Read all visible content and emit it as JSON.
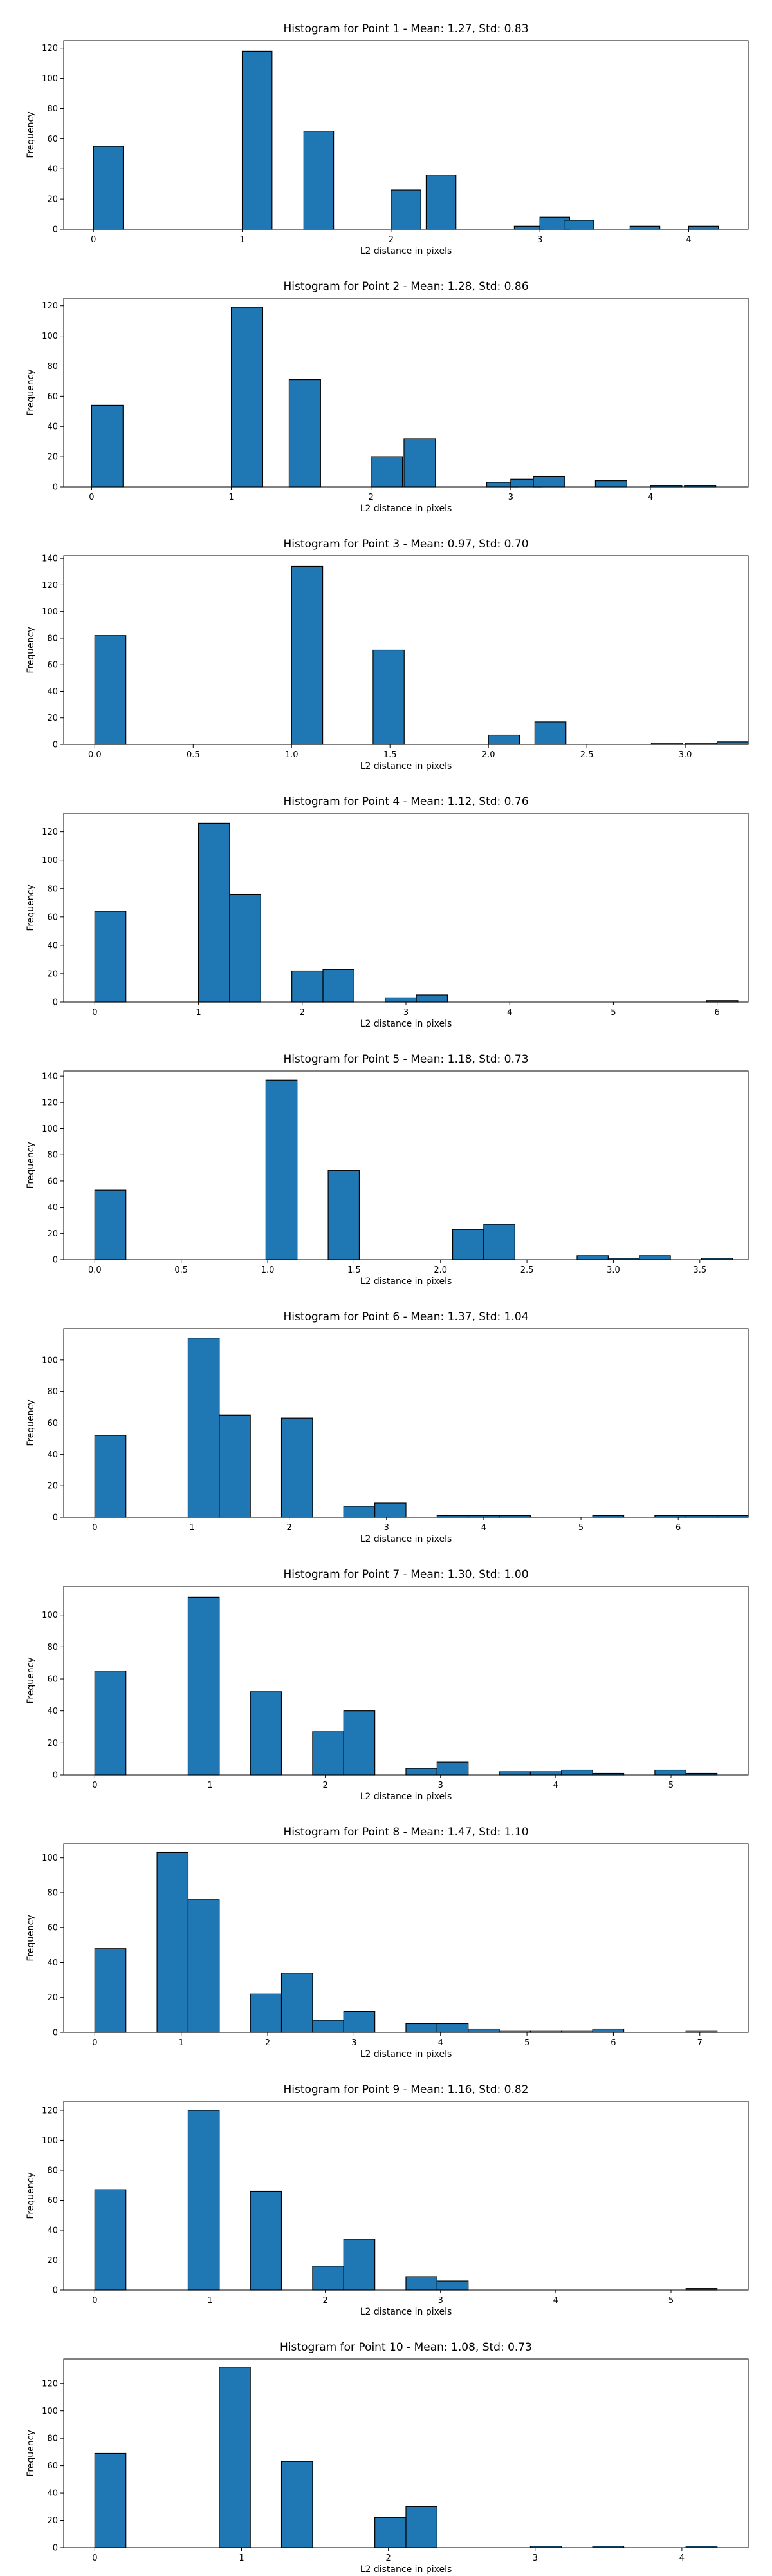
{
  "style": {
    "bar_color": "#1f77b4",
    "edge_color": "#000000"
  },
  "chart_data": [
    {
      "type": "bar",
      "title": "Histogram for Point 1 - Mean: 1.27, Std: 0.83",
      "xlabel": "L2 distance in pixels",
      "ylabel": "Frequency",
      "bin_width": 0.2,
      "xlim": [
        -0.2,
        4.4
      ],
      "ylim": [
        0,
        125
      ],
      "xticks": [
        0,
        1,
        2,
        3,
        4
      ],
      "xtick_labels": [
        "0",
        "1",
        "2",
        "3",
        "4"
      ],
      "yticks": [
        0,
        20,
        40,
        60,
        80,
        100,
        120
      ],
      "ytick_labels": [
        "0",
        "20",
        "40",
        "60",
        "80",
        "100",
        "120"
      ],
      "bars": [
        {
          "x": 0.0,
          "value": 55
        },
        {
          "x": 1.0,
          "value": 118
        },
        {
          "x": 1.414,
          "value": 65
        },
        {
          "x": 2.0,
          "value": 26
        },
        {
          "x": 2.236,
          "value": 36
        },
        {
          "x": 2.828,
          "value": 2
        },
        {
          "x": 3.0,
          "value": 8
        },
        {
          "x": 3.162,
          "value": 6
        },
        {
          "x": 3.606,
          "value": 2
        },
        {
          "x": 4.0,
          "value": 2
        }
      ]
    },
    {
      "type": "bar",
      "title": "Histogram for Point 2 - Mean: 1.28, Std: 0.86",
      "xlabel": "L2 distance in pixels",
      "ylabel": "Frequency",
      "bin_width": 0.225,
      "xlim": [
        -0.2,
        4.7
      ],
      "ylim": [
        0,
        125
      ],
      "xticks": [
        0,
        1,
        2,
        3,
        4
      ],
      "xtick_labels": [
        "0",
        "1",
        "2",
        "3",
        "4"
      ],
      "yticks": [
        0,
        20,
        40,
        60,
        80,
        100,
        120
      ],
      "ytick_labels": [
        "0",
        "20",
        "40",
        "60",
        "80",
        "100",
        "120"
      ],
      "bars": [
        {
          "x": 0.0,
          "value": 54
        },
        {
          "x": 1.0,
          "value": 119
        },
        {
          "x": 1.414,
          "value": 71
        },
        {
          "x": 2.0,
          "value": 20
        },
        {
          "x": 2.236,
          "value": 32
        },
        {
          "x": 2.828,
          "value": 3
        },
        {
          "x": 3.0,
          "value": 5
        },
        {
          "x": 3.162,
          "value": 7
        },
        {
          "x": 3.606,
          "value": 4
        },
        {
          "x": 4.0,
          "value": 1
        },
        {
          "x": 4.243,
          "value": 1
        }
      ]
    },
    {
      "type": "bar",
      "title": "Histogram for Point 3 - Mean: 0.97, Std: 0.70",
      "xlabel": "L2 distance in pixels",
      "ylabel": "Frequency",
      "bin_width": 0.158,
      "xlim": [
        -0.158,
        3.32
      ],
      "ylim": [
        0,
        142
      ],
      "xticks": [
        0,
        0.5,
        1,
        1.5,
        2,
        2.5,
        3
      ],
      "xtick_labels": [
        "0.0",
        "0.5",
        "1.0",
        "1.5",
        "2.0",
        "2.5",
        "3.0"
      ],
      "yticks": [
        0,
        20,
        40,
        60,
        80,
        100,
        120,
        140
      ],
      "ytick_labels": [
        "0",
        "20",
        "40",
        "60",
        "80",
        "100",
        "120",
        "140"
      ],
      "bars": [
        {
          "x": 0.0,
          "value": 82
        },
        {
          "x": 1.0,
          "value": 134
        },
        {
          "x": 1.414,
          "value": 71
        },
        {
          "x": 2.0,
          "value": 7
        },
        {
          "x": 2.236,
          "value": 17
        },
        {
          "x": 2.828,
          "value": 1
        },
        {
          "x": 3.0,
          "value": 1
        },
        {
          "x": 3.162,
          "value": 2
        }
      ]
    },
    {
      "type": "bar",
      "title": "Histogram for Point 4 - Mean: 1.12, Std: 0.76",
      "xlabel": "L2 distance in pixels",
      "ylabel": "Frequency",
      "bin_width": 0.3,
      "xlim": [
        -0.3,
        6.3
      ],
      "ylim": [
        0,
        133
      ],
      "xticks": [
        0,
        1,
        2,
        3,
        4,
        5,
        6
      ],
      "xtick_labels": [
        "0",
        "1",
        "2",
        "3",
        "4",
        "5",
        "6"
      ],
      "yticks": [
        0,
        20,
        40,
        60,
        80,
        100,
        120
      ],
      "ytick_labels": [
        "0",
        "20",
        "40",
        "60",
        "80",
        "100",
        "120"
      ],
      "bars": [
        {
          "x": 0.0,
          "value": 64
        },
        {
          "x": 1.0,
          "value": 126
        },
        {
          "x": 1.3,
          "value": 76
        },
        {
          "x": 1.9,
          "value": 22
        },
        {
          "x": 2.2,
          "value": 23
        },
        {
          "x": 2.8,
          "value": 3
        },
        {
          "x": 3.1,
          "value": 5
        },
        {
          "x": 5.9,
          "value": 1
        }
      ]
    },
    {
      "type": "bar",
      "title": "Histogram for Point 5 - Mean: 1.18, Std: 0.73",
      "xlabel": "L2 distance in pixels",
      "ylabel": "Frequency",
      "bin_width": 0.18,
      "xlim": [
        -0.18,
        3.78
      ],
      "ylim": [
        0,
        144
      ],
      "xticks": [
        0,
        0.5,
        1,
        1.5,
        2,
        2.5,
        3,
        3.5
      ],
      "xtick_labels": [
        "0.0",
        "0.5",
        "1.0",
        "1.5",
        "2.0",
        "2.5",
        "3.0",
        "3.5"
      ],
      "yticks": [
        0,
        20,
        40,
        60,
        80,
        100,
        120,
        140
      ],
      "ytick_labels": [
        "0",
        "20",
        "40",
        "60",
        "80",
        "100",
        "120",
        "140"
      ],
      "bars": [
        {
          "x": 0.0,
          "value": 53
        },
        {
          "x": 0.99,
          "value": 137
        },
        {
          "x": 1.35,
          "value": 68
        },
        {
          "x": 2.07,
          "value": 23
        },
        {
          "x": 2.25,
          "value": 27
        },
        {
          "x": 2.79,
          "value": 3
        },
        {
          "x": 2.97,
          "value": 1
        },
        {
          "x": 3.15,
          "value": 3
        },
        {
          "x": 3.51,
          "value": 1
        }
      ]
    },
    {
      "type": "bar",
      "title": "Histogram for Point 6 - Mean: 1.37, Std: 1.04",
      "xlabel": "L2 distance in pixels",
      "ylabel": "Frequency",
      "bin_width": 0.32,
      "xlim": [
        -0.32,
        6.72
      ],
      "ylim": [
        0,
        120
      ],
      "xticks": [
        0,
        1,
        2,
        3,
        4,
        5,
        6
      ],
      "xtick_labels": [
        "0",
        "1",
        "2",
        "3",
        "4",
        "5",
        "6"
      ],
      "yticks": [
        0,
        20,
        40,
        60,
        80,
        100
      ],
      "ytick_labels": [
        "0",
        "20",
        "40",
        "60",
        "80",
        "100"
      ],
      "bars": [
        {
          "x": 0.0,
          "value": 52
        },
        {
          "x": 0.96,
          "value": 114
        },
        {
          "x": 1.28,
          "value": 65
        },
        {
          "x": 1.92,
          "value": 63
        },
        {
          "x": 2.56,
          "value": 7
        },
        {
          "x": 2.88,
          "value": 9
        },
        {
          "x": 3.52,
          "value": 1
        },
        {
          "x": 3.84,
          "value": 1
        },
        {
          "x": 4.16,
          "value": 1
        },
        {
          "x": 5.12,
          "value": 1
        },
        {
          "x": 5.76,
          "value": 1
        },
        {
          "x": 6.08,
          "value": 1
        },
        {
          "x": 6.4,
          "value": 1
        }
      ]
    },
    {
      "type": "bar",
      "title": "Histogram for Point 7 - Mean: 1.30, Std: 1.00",
      "xlabel": "L2 distance in pixels",
      "ylabel": "Frequency",
      "bin_width": 0.27,
      "xlim": [
        -0.27,
        5.67
      ],
      "ylim": [
        0,
        118
      ],
      "xticks": [
        0,
        1,
        2,
        3,
        4,
        5
      ],
      "xtick_labels": [
        "0",
        "1",
        "2",
        "3",
        "4",
        "5"
      ],
      "yticks": [
        0,
        20,
        40,
        60,
        80,
        100
      ],
      "ytick_labels": [
        "0",
        "20",
        "40",
        "60",
        "80",
        "100"
      ],
      "bars": [
        {
          "x": 0.0,
          "value": 65
        },
        {
          "x": 0.81,
          "value": 111
        },
        {
          "x": 1.35,
          "value": 52
        },
        {
          "x": 1.89,
          "value": 27
        },
        {
          "x": 2.16,
          "value": 40
        },
        {
          "x": 2.7,
          "value": 4
        },
        {
          "x": 2.97,
          "value": 8
        },
        {
          "x": 3.51,
          "value": 2
        },
        {
          "x": 3.78,
          "value": 2
        },
        {
          "x": 4.05,
          "value": 3
        },
        {
          "x": 4.32,
          "value": 1
        },
        {
          "x": 4.86,
          "value": 3
        },
        {
          "x": 5.13,
          "value": 1
        }
      ]
    },
    {
      "type": "bar",
      "title": "Histogram for Point 8 - Mean: 1.47, Std: 1.10",
      "xlabel": "L2 distance in pixels",
      "ylabel": "Frequency",
      "bin_width": 0.36,
      "xlim": [
        -0.36,
        7.56
      ],
      "ylim": [
        0,
        108
      ],
      "xticks": [
        0,
        1,
        2,
        3,
        4,
        5,
        6,
        7
      ],
      "xtick_labels": [
        "0",
        "1",
        "2",
        "3",
        "4",
        "5",
        "6",
        "7"
      ],
      "yticks": [
        0,
        20,
        40,
        60,
        80,
        100
      ],
      "ytick_labels": [
        "0",
        "20",
        "40",
        "60",
        "80",
        "100"
      ],
      "bars": [
        {
          "x": 0.0,
          "value": 48
        },
        {
          "x": 0.72,
          "value": 103
        },
        {
          "x": 1.08,
          "value": 76
        },
        {
          "x": 1.8,
          "value": 22
        },
        {
          "x": 2.16,
          "value": 34
        },
        {
          "x": 2.52,
          "value": 7
        },
        {
          "x": 2.88,
          "value": 12
        },
        {
          "x": 3.6,
          "value": 5
        },
        {
          "x": 3.96,
          "value": 5
        },
        {
          "x": 4.32,
          "value": 2
        },
        {
          "x": 4.68,
          "value": 1
        },
        {
          "x": 5.04,
          "value": 1
        },
        {
          "x": 5.4,
          "value": 1
        },
        {
          "x": 5.76,
          "value": 2
        },
        {
          "x": 6.84,
          "value": 1
        }
      ]
    },
    {
      "type": "bar",
      "title": "Histogram for Point 9 - Mean: 1.16, Std: 0.82",
      "xlabel": "L2 distance in pixels",
      "ylabel": "Frequency",
      "bin_width": 0.27,
      "xlim": [
        -0.27,
        5.67
      ],
      "ylim": [
        0,
        126
      ],
      "xticks": [
        0,
        1,
        2,
        3,
        4,
        5
      ],
      "xtick_labels": [
        "0",
        "1",
        "2",
        "3",
        "4",
        "5"
      ],
      "yticks": [
        0,
        20,
        40,
        60,
        80,
        100,
        120
      ],
      "ytick_labels": [
        "0",
        "20",
        "40",
        "60",
        "80",
        "100",
        "120"
      ],
      "bars": [
        {
          "x": 0.0,
          "value": 67
        },
        {
          "x": 0.81,
          "value": 120
        },
        {
          "x": 1.35,
          "value": 66
        },
        {
          "x": 1.89,
          "value": 16
        },
        {
          "x": 2.16,
          "value": 34
        },
        {
          "x": 2.7,
          "value": 9
        },
        {
          "x": 2.97,
          "value": 6
        },
        {
          "x": 5.13,
          "value": 1
        }
      ]
    },
    {
      "type": "bar",
      "title": "Histogram for Point 10 - Mean: 1.08, Std: 0.73",
      "xlabel": "L2 distance in pixels",
      "ylabel": "Frequency",
      "bin_width": 0.212,
      "xlim": [
        -0.212,
        4.452
      ],
      "ylim": [
        0,
        138
      ],
      "xticks": [
        0,
        1,
        2,
        3,
        4
      ],
      "xtick_labels": [
        "0",
        "1",
        "2",
        "3",
        "4"
      ],
      "yticks": [
        0,
        20,
        40,
        60,
        80,
        100,
        120
      ],
      "ytick_labels": [
        "0",
        "20",
        "40",
        "60",
        "80",
        "100",
        "120"
      ],
      "bars": [
        {
          "x": 0.0,
          "value": 69
        },
        {
          "x": 0.848,
          "value": 132
        },
        {
          "x": 1.272,
          "value": 63
        },
        {
          "x": 1.908,
          "value": 22
        },
        {
          "x": 2.12,
          "value": 30
        },
        {
          "x": 2.968,
          "value": 1
        },
        {
          "x": 3.392,
          "value": 1
        },
        {
          "x": 4.028,
          "value": 1
        }
      ]
    }
  ]
}
